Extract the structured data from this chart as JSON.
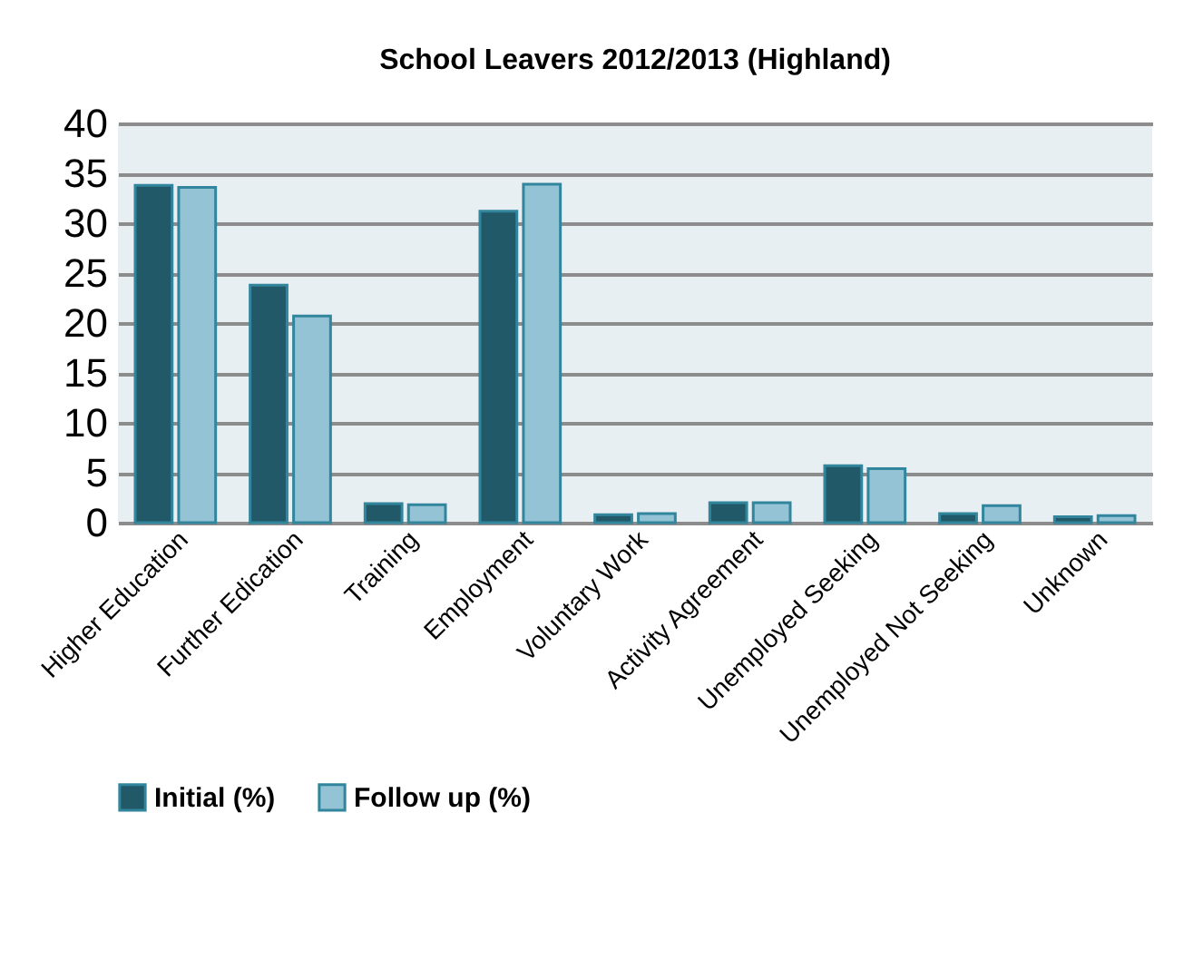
{
  "chart_data": {
    "type": "bar",
    "title": "School Leavers 2012/2013 (Highland)",
    "categories": [
      "Higher Education",
      "Further Edication",
      "Training",
      "Employment",
      "Voluntary Work",
      "Activity Agreement",
      "Unemployed Seeking",
      "Unemployed Not Seeking",
      "Unknown"
    ],
    "series": [
      {
        "name": "Initial (%)",
        "color": "#215968",
        "values": [
          33.8,
          23.8,
          1.9,
          31.2,
          0.8,
          2.0,
          5.7,
          0.9,
          0.6
        ]
      },
      {
        "name": "Follow up (%)",
        "color": "#93c3d5",
        "values": [
          33.6,
          20.7,
          1.8,
          33.9,
          0.9,
          2.0,
          5.4,
          1.7,
          0.7
        ]
      }
    ],
    "ylim": [
      0,
      40
    ],
    "yticks": [
      0,
      5,
      10,
      15,
      20,
      25,
      30,
      35,
      40
    ],
    "grid": "y",
    "legend": "bottom"
  }
}
